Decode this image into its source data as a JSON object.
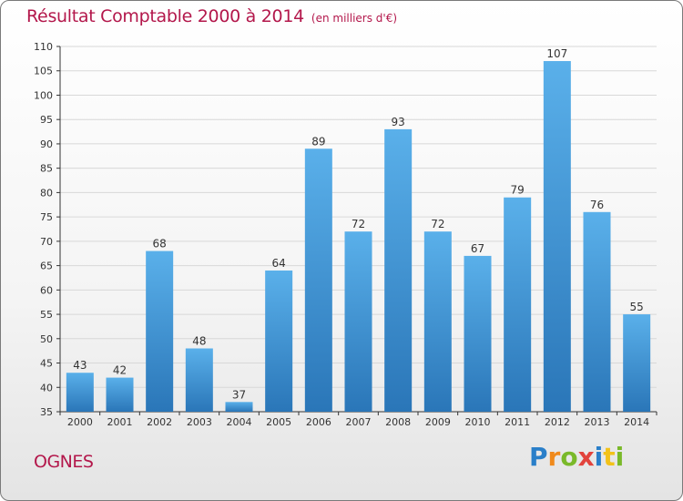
{
  "header": {
    "title": "Résultat Comptable 2000 à 2014",
    "unit": "(en milliers d'€)"
  },
  "footer": {
    "city": "OGNES",
    "logo_letters": [
      "P",
      "r",
      "o",
      "x",
      "i",
      "t",
      "i"
    ]
  },
  "colors": {
    "bar_light": "#5ab0ea",
    "bar_dark": "#2a76b8",
    "title": "#b3174b",
    "grid": "#d8d8d8"
  },
  "chart_data": {
    "type": "bar",
    "title": "Résultat Comptable 2000 à 2014",
    "subtitle": "(en milliers d'€)",
    "xlabel": "",
    "ylabel": "",
    "categories": [
      "2000",
      "2001",
      "2002",
      "2003",
      "2004",
      "2005",
      "2006",
      "2007",
      "2008",
      "2009",
      "2010",
      "2011",
      "2012",
      "2013",
      "2014"
    ],
    "values": [
      43,
      42,
      68,
      48,
      37,
      64,
      89,
      72,
      93,
      72,
      67,
      79,
      107,
      76,
      55
    ],
    "ylim": [
      35,
      110
    ],
    "yticks": [
      35,
      40,
      45,
      50,
      55,
      60,
      65,
      70,
      75,
      80,
      85,
      90,
      95,
      100,
      105,
      110
    ],
    "grid": true,
    "data_labels": true
  }
}
